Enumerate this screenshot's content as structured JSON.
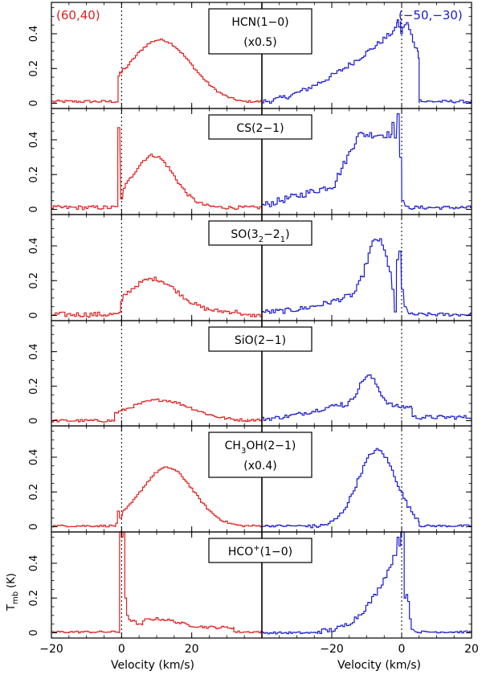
{
  "chart_data": {
    "type": "line",
    "plot_style": "step",
    "colors": {
      "left": "#e02020",
      "right": "#1a1ad0",
      "axis": "#000000"
    },
    "left_label": "(60,40)",
    "right_label": "(−50,−30)",
    "xlabel_left": "Velocity (km/s)",
    "xlabel_right": "Velocity (km/s)",
    "ylabel": "T_mb (K)",
    "ylabel_main": "T",
    "ylabel_sub": "mb",
    "ylabel_unit": "(K)",
    "x_left": {
      "range": [
        -20,
        40
      ],
      "ticks": [
        -20,
        0,
        20
      ],
      "ticklabels": [
        "−20",
        "0",
        "20"
      ],
      "dashed_at": 0
    },
    "x_right": {
      "range": [
        -40,
        20
      ],
      "ticks": [
        -20,
        0,
        20
      ],
      "ticklabels": [
        "−20",
        "0",
        "20"
      ],
      "dashed_at": 0
    },
    "panels": [
      {
        "name": "hcn",
        "label": {
          "main": "HCN(1−0)",
          "line2": "(x0.5)"
        },
        "ylim": [
          -0.03,
          0.58
        ],
        "yticks": [
          0,
          0.2,
          0.4
        ],
        "yticklabels": [
          "0",
          "0.2",
          "0.4"
        ],
        "left": [
          {
            "type": "flat",
            "a": -20,
            "b": -1,
            "v": 0.01,
            "noise": 0.008
          },
          {
            "type": "gauss",
            "a": -1,
            "b": 34,
            "amp": 0.365,
            "c": 11,
            "sig": 9,
            "base": 0.0,
            "noise": 0.006
          },
          {
            "type": "flat",
            "a": 34,
            "b": 40,
            "v": 0.01,
            "noise": 0.006
          }
        ],
        "left_points": [
          {
            "x": -0.3,
            "y": 0.18
          },
          {
            "x": 0.5,
            "y": 0.2
          }
        ],
        "right": [
          {
            "type": "ramp",
            "a": -40,
            "b": -2,
            "v0": 0.01,
            "v1": 0.42,
            "pow": 1.6,
            "noise": 0.015
          },
          {
            "type": "flat",
            "a": -2,
            "b": 2,
            "v": 0.45,
            "noise": 0.03
          },
          {
            "type": "ramp",
            "a": 2,
            "b": 5,
            "v0": 0.43,
            "v1": 0.28,
            "pow": 1,
            "noise": 0.02
          },
          {
            "type": "flat",
            "a": 5,
            "b": 20,
            "v": 0.01,
            "noise": 0.008
          }
        ],
        "right_points": [
          {
            "x": -1.0,
            "y": 0.48
          },
          {
            "x": 0.0,
            "y": 0.4
          },
          {
            "x": 4.8,
            "y": 0.3
          },
          {
            "x": 5.3,
            "y": 0.02
          }
        ]
      },
      {
        "name": "cs",
        "label": {
          "main": "CS(2−1)"
        },
        "ylim": [
          -0.03,
          0.58
        ],
        "yticks": [
          0,
          0.2,
          0.4
        ],
        "yticklabels": [
          "0",
          "0.2",
          "0.4"
        ],
        "left": [
          {
            "type": "flat",
            "a": -20,
            "b": -1.2,
            "v": 0.01,
            "noise": 0.012
          },
          {
            "type": "gauss",
            "a": 0.5,
            "b": 30,
            "amp": 0.3,
            "c": 9,
            "sig": 6,
            "base": 0.01,
            "noise": 0.01
          },
          {
            "type": "flat",
            "a": 30,
            "b": 40,
            "v": 0.01,
            "noise": 0.01
          }
        ],
        "left_points": [
          {
            "x": -0.8,
            "y": 0.47
          },
          {
            "x": 0.0,
            "y": 0.06
          }
        ],
        "right": [
          {
            "type": "ramp",
            "a": -40,
            "b": -19,
            "v0": 0.02,
            "v1": 0.14,
            "pow": 1,
            "noise": 0.02
          },
          {
            "type": "ramp",
            "a": -19,
            "b": -13,
            "v0": 0.16,
            "v1": 0.4,
            "pow": 1,
            "noise": 0.02
          },
          {
            "type": "flat",
            "a": -13,
            "b": -3,
            "v": 0.43,
            "noise": 0.02
          },
          {
            "type": "flat",
            "a": 1,
            "b": 20,
            "v": 0.01,
            "noise": 0.01
          }
        ],
        "right_points": [
          {
            "x": -2.5,
            "y": 0.5
          },
          {
            "x": -1.8,
            "y": 0.41
          },
          {
            "x": -1.0,
            "y": 0.55
          },
          {
            "x": -0.3,
            "y": 0.3
          },
          {
            "x": 0.3,
            "y": 0.05
          }
        ]
      },
      {
        "name": "so",
        "label": {
          "main": "SO(3",
          "sub1": "2",
          "mid": "−2",
          "sub2": "1",
          "close": ")"
        },
        "ylim": [
          -0.03,
          0.58
        ],
        "yticks": [
          0,
          0.2,
          0.4
        ],
        "yticklabels": [
          "0",
          "0.2",
          "0.4"
        ],
        "left": [
          {
            "type": "flat",
            "a": -20,
            "b": -0.5,
            "v": 0.005,
            "noise": 0.015
          },
          {
            "type": "gauss",
            "a": 0.5,
            "b": 34,
            "amp": 0.19,
            "c": 9,
            "sig": 7,
            "base": 0.02,
            "noise": 0.012
          },
          {
            "type": "flat",
            "a": 34,
            "b": 40,
            "v": 0.0,
            "noise": 0.01
          }
        ],
        "left_points": [
          {
            "x": 0.0,
            "y": 0.08
          }
        ],
        "right": [
          {
            "type": "ramp",
            "a": -40,
            "b": -14,
            "v0": 0.02,
            "v1": 0.12,
            "pow": 2,
            "noise": 0.015
          },
          {
            "type": "gauss",
            "a": -14,
            "b": -3,
            "amp": 0.34,
            "c": -7,
            "sig": 3,
            "base": 0.1,
            "noise": 0.02
          },
          {
            "type": "flat",
            "a": 2,
            "b": 20,
            "v": 0.005,
            "noise": 0.01
          }
        ],
        "right_points": [
          {
            "x": -2.5,
            "y": 0.15
          },
          {
            "x": -1.8,
            "y": 0.02
          },
          {
            "x": -1.2,
            "y": 0.32
          },
          {
            "x": -0.5,
            "y": 0.37
          },
          {
            "x": 0.2,
            "y": 0.15
          },
          {
            "x": 1.0,
            "y": 0.05
          }
        ]
      },
      {
        "name": "sio",
        "label": {
          "main": "SiO(2−1)"
        },
        "ylim": [
          -0.03,
          0.58
        ],
        "yticks": [
          0,
          0.2,
          0.4
        ],
        "yticklabels": [
          "0",
          "0.2",
          "0.4"
        ],
        "left": [
          {
            "type": "flat",
            "a": -20,
            "b": -2,
            "v": 0.0,
            "noise": 0.008
          },
          {
            "type": "gauss",
            "a": -2,
            "b": 36,
            "amp": 0.12,
            "c": 11,
            "sig": 9,
            "base": 0.0,
            "noise": 0.008
          },
          {
            "type": "flat",
            "a": 36,
            "b": 40,
            "v": 0.005,
            "noise": 0.008
          }
        ],
        "left_points": [],
        "right": [
          {
            "type": "ramp",
            "a": -40,
            "b": -17,
            "v0": 0.01,
            "v1": 0.1,
            "pow": 1.5,
            "noise": 0.012
          },
          {
            "type": "gauss",
            "a": -17,
            "b": 3,
            "amp": 0.18,
            "c": -9.5,
            "sig": 2.8,
            "base": 0.08,
            "noise": 0.012
          },
          {
            "type": "flat",
            "a": 3,
            "b": 20,
            "v": 0.02,
            "noise": 0.012
          }
        ],
        "right_points": []
      },
      {
        "name": "ch3oh",
        "label": {
          "main": "CH",
          "sub1": "3",
          "mid": "OH(2−1)",
          "line2": "(x0.4)"
        },
        "ylim": [
          -0.03,
          0.58
        ],
        "yticks": [
          0,
          0.2,
          0.4
        ],
        "yticklabels": [
          "0",
          "0.2",
          "0.4"
        ],
        "left": [
          {
            "type": "flat",
            "a": -20,
            "b": -1.5,
            "v": 0.005,
            "noise": 0.006
          },
          {
            "type": "gauss",
            "a": 0.5,
            "b": 34,
            "amp": 0.34,
            "c": 13,
            "sig": 7.5,
            "base": 0.0,
            "noise": 0.006
          },
          {
            "type": "flat",
            "a": 34,
            "b": 40,
            "v": 0.005,
            "noise": 0.006
          }
        ],
        "left_points": [
          {
            "x": -1.4,
            "y": 0.02
          },
          {
            "x": -0.9,
            "y": 0.09
          },
          {
            "x": -0.3,
            "y": 0.05
          }
        ],
        "right": [
          {
            "type": "flat",
            "a": -40,
            "b": -26,
            "v": 0.005,
            "noise": 0.006
          },
          {
            "type": "gauss",
            "a": -26,
            "b": 5,
            "amp": 0.44,
            "c": -7,
            "sig": 5.5,
            "base": 0.0,
            "noise": 0.012
          },
          {
            "type": "flat",
            "a": 5,
            "b": 20,
            "v": 0.005,
            "noise": 0.006
          }
        ],
        "right_points": []
      },
      {
        "name": "hcop",
        "label": {
          "main": "HCO",
          "sup": "+",
          "mid": "(1−0)"
        },
        "ylim": [
          -0.03,
          0.58
        ],
        "yticks": [
          0,
          0.2,
          0.4
        ],
        "yticklabels": [
          "0",
          "0.2",
          "0.4"
        ],
        "left": [
          {
            "type": "flat",
            "a": -20,
            "b": -0.5,
            "v": 0.005,
            "noise": 0.006
          },
          {
            "type": "ramp",
            "a": 2,
            "b": 6,
            "v0": 0.08,
            "v1": 0.04,
            "pow": 1,
            "noise": 0.008
          },
          {
            "type": "gauss",
            "a": 6,
            "b": 32,
            "amp": 0.05,
            "c": 10,
            "sig": 6,
            "base": 0.03,
            "noise": 0.008
          },
          {
            "type": "flat",
            "a": 32,
            "b": 40,
            "v": 0.005,
            "noise": 0.006
          }
        ],
        "left_points": [
          {
            "x": -0.3,
            "y": 0.58
          },
          {
            "x": 0.2,
            "y": 0.55
          },
          {
            "x": 0.7,
            "y": 0.58
          },
          {
            "x": 1.2,
            "y": 0.2
          },
          {
            "x": 1.7,
            "y": 0.1
          }
        ],
        "right": [
          {
            "type": "flat",
            "a": -40,
            "b": -24,
            "v": 0.0,
            "noise": 0.006
          },
          {
            "type": "ramp",
            "a": -24,
            "b": -1.5,
            "v0": 0.01,
            "v1": 0.47,
            "pow": 2.5,
            "noise": 0.015
          },
          {
            "type": "flat",
            "a": 4,
            "b": 20,
            "v": 0.005,
            "noise": 0.006
          }
        ],
        "right_points": [
          {
            "x": -1.0,
            "y": 0.55
          },
          {
            "x": -0.5,
            "y": 0.5
          },
          {
            "x": 0.0,
            "y": 0.58
          },
          {
            "x": 0.5,
            "y": 0.58
          },
          {
            "x": 1.0,
            "y": 0.2
          },
          {
            "x": 1.5,
            "y": 0.22
          },
          {
            "x": 2.0,
            "y": 0.18
          },
          {
            "x": 2.5,
            "y": 0.08
          },
          {
            "x": 3.0,
            "y": 0.02
          }
        ]
      }
    ]
  }
}
